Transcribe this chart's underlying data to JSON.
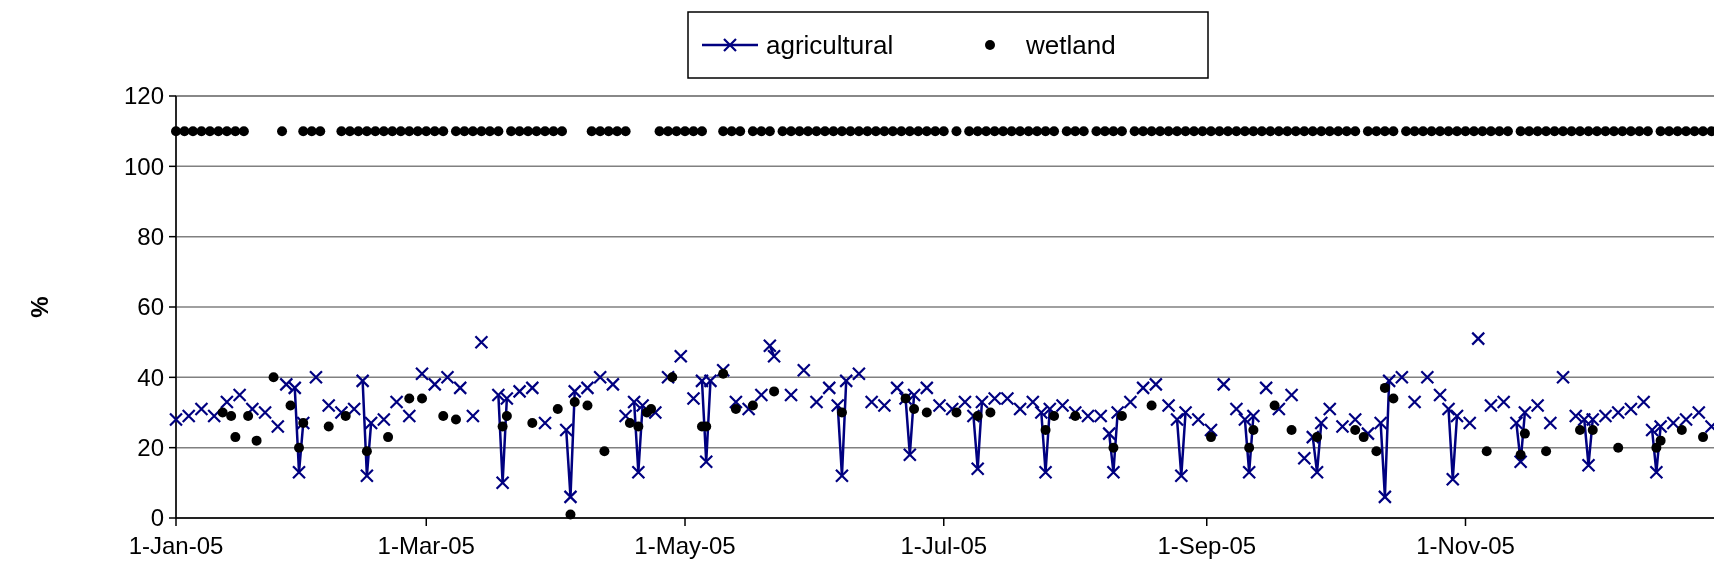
{
  "chart_data": {
    "type": "line",
    "ylabel": "%",
    "ylim": [
      0,
      120
    ],
    "yticks": [
      0,
      20,
      40,
      60,
      80,
      100,
      120
    ],
    "xlim": [
      "2005-01-01",
      "2005-12-31"
    ],
    "xticks": [
      {
        "value": "2005-01-01",
        "label": "1-Jan-05"
      },
      {
        "value": "2005-03-01",
        "label": "1-Mar-05"
      },
      {
        "value": "2005-05-01",
        "label": "1-May-05"
      },
      {
        "value": "2005-07-01",
        "label": "1-Jul-05"
      },
      {
        "value": "2005-09-01",
        "label": "1-Sep-05"
      },
      {
        "value": "2005-11-01",
        "label": "1-Nov-05"
      }
    ],
    "grid": "y",
    "legend": "top",
    "marker": "cross",
    "series": [
      {
        "name": "agricultural",
        "color": "#000080",
        "x": [
          "2005-01-29",
          "2005-01-30",
          "2005-01-31"
        ],
        "values": [
          37,
          13,
          27
        ]
      },
      {
        "color": "#000080",
        "x": [
          "2005-02-14",
          "2005-02-15",
          "2005-02-16"
        ],
        "values": [
          39,
          12,
          27
        ]
      },
      {
        "color": "#000080",
        "x": [
          "2005-03-18",
          "2005-03-19",
          "2005-03-20"
        ],
        "values": [
          35,
          10,
          34
        ]
      },
      {
        "color": "#000080",
        "x": [
          "2005-04-03",
          "2005-04-04",
          "2005-04-05"
        ],
        "values": [
          25,
          6,
          36
        ]
      },
      {
        "color": "#000080",
        "x": [
          "2005-04-19",
          "2005-04-20",
          "2005-04-21"
        ],
        "values": [
          33,
          13,
          32
        ]
      },
      {
        "color": "#000080",
        "x": [
          "2005-05-05",
          "2005-05-06",
          "2005-05-07"
        ],
        "values": [
          39,
          16,
          39
        ]
      },
      {
        "color": "#000080",
        "x": [
          "2005-05-21",
          "2005-05-22"
        ],
        "values": [
          49,
          46
        ]
      },
      {
        "color": "#000080",
        "x": [
          "2005-06-06",
          "2005-06-07",
          "2005-06-08"
        ],
        "values": [
          32,
          12,
          39
        ]
      },
      {
        "color": "#000080",
        "x": [
          "2005-06-22",
          "2005-06-23",
          "2005-06-24"
        ],
        "values": [
          34,
          18,
          35
        ]
      },
      {
        "color": "#000080",
        "x": [
          "2005-07-08",
          "2005-07-09",
          "2005-07-10"
        ],
        "values": [
          29,
          14,
          33
        ]
      },
      {
        "color": "#000080",
        "x": [
          "2005-07-24",
          "2005-07-25",
          "2005-07-26"
        ],
        "values": [
          30,
          13,
          31
        ]
      },
      {
        "color": "#000080",
        "x": [
          "2005-08-09",
          "2005-08-10",
          "2005-08-11"
        ],
        "values": [
          24,
          13,
          30
        ]
      },
      {
        "color": "#000080",
        "x": [
          "2005-08-25",
          "2005-08-26",
          "2005-08-27"
        ],
        "values": [
          28,
          12,
          30
        ]
      },
      {
        "color": "#000080",
        "x": [
          "2005-09-10",
          "2005-09-11",
          "2005-09-12"
        ],
        "values": [
          28,
          13,
          29
        ]
      },
      {
        "color": "#000080",
        "x": [
          "2005-09-26",
          "2005-09-27",
          "2005-09-28"
        ],
        "values": [
          23,
          13,
          27
        ]
      },
      {
        "color": "#000080",
        "x": [
          "2005-10-12",
          "2005-10-13",
          "2005-10-14"
        ],
        "values": [
          27,
          6,
          39
        ]
      },
      {
        "color": "#000080",
        "x": [
          "2005-10-28",
          "2005-10-29",
          "2005-10-30"
        ],
        "values": [
          31,
          11,
          29
        ]
      },
      {
        "color": "#000080",
        "x": [
          "2005-11-13",
          "2005-11-14",
          "2005-11-15"
        ],
        "values": [
          27,
          16,
          30
        ]
      },
      {
        "color": "#000080",
        "x": [
          "2005-11-29",
          "2005-11-30",
          "2005-12-01"
        ],
        "values": [
          28,
          15,
          28
        ]
      },
      {
        "color": "#000080",
        "x": [
          "2005-12-15",
          "2005-12-16",
          "2005-12-17"
        ],
        "values": [
          25,
          13,
          26
        ]
      },
      {
        "type": "scatter",
        "color": "#000080",
        "x": [
          "2005-01-01",
          "2005-01-04",
          "2005-01-07",
          "2005-01-10",
          "2005-01-13",
          "2005-01-16",
          "2005-01-19",
          "2005-01-22",
          "2005-01-25",
          "2005-01-27",
          "2005-02-03",
          "2005-02-06",
          "2005-02-09",
          "2005-02-12",
          "2005-02-19",
          "2005-02-22",
          "2005-02-25",
          "2005-02-28",
          "2005-03-03",
          "2005-03-06",
          "2005-03-09",
          "2005-03-12",
          "2005-03-14",
          "2005-03-23",
          "2005-03-26",
          "2005-03-29",
          "2005-04-08",
          "2005-04-11",
          "2005-04-14",
          "2005-04-17",
          "2005-04-24",
          "2005-04-27",
          "2005-04-30",
          "2005-05-03",
          "2005-05-10",
          "2005-05-13",
          "2005-05-16",
          "2005-05-19",
          "2005-05-26",
          "2005-05-29",
          "2005-06-01",
          "2005-06-04",
          "2005-06-11",
          "2005-06-14",
          "2005-06-17",
          "2005-06-20",
          "2005-06-27",
          "2005-06-30",
          "2005-07-03",
          "2005-07-06",
          "2005-07-13",
          "2005-07-16",
          "2005-07-19",
          "2005-07-22",
          "2005-07-29",
          "2005-08-01",
          "2005-08-04",
          "2005-08-07",
          "2005-08-14",
          "2005-08-17",
          "2005-08-20",
          "2005-08-23",
          "2005-08-30",
          "2005-09-02",
          "2005-09-05",
          "2005-09-08",
          "2005-09-15",
          "2005-09-18",
          "2005-09-21",
          "2005-09-24",
          "2005-09-30",
          "2005-10-03",
          "2005-10-06",
          "2005-10-09",
          "2005-10-17",
          "2005-10-20",
          "2005-10-23",
          "2005-10-26",
          "2005-11-02",
          "2005-11-04",
          "2005-11-07",
          "2005-11-10",
          "2005-11-18",
          "2005-11-21",
          "2005-11-24",
          "2005-11-27",
          "2005-12-04",
          "2005-12-07",
          "2005-12-10",
          "2005-12-13",
          "2005-12-20",
          "2005-12-23",
          "2005-12-26",
          "2005-12-29"
        ],
        "values": [
          28,
          29,
          31,
          29,
          33,
          35,
          31,
          30,
          26,
          38,
          40,
          32,
          30,
          31,
          28,
          33,
          29,
          41,
          38,
          40,
          37,
          29,
          50,
          36,
          37,
          27,
          37,
          40,
          38,
          29,
          30,
          40,
          46,
          34,
          42,
          33,
          31,
          35,
          35,
          42,
          33,
          37,
          41,
          33,
          32,
          37,
          37,
          32,
          31,
          33,
          34,
          34,
          31,
          33,
          32,
          30,
          29,
          29,
          33,
          37,
          38,
          32,
          28,
          25,
          38,
          31,
          37,
          31,
          35,
          17,
          31,
          26,
          28,
          24,
          40,
          33,
          40,
          35,
          27,
          51,
          32,
          33,
          32,
          27,
          40,
          29,
          29,
          30,
          31,
          33,
          27,
          28,
          30,
          26
        ]
      },
      {
        "name": "wetland",
        "type": "scatter",
        "marker": "circle",
        "color": "#000000",
        "x": [
          "2005-01-01",
          "2005-01-03",
          "2005-01-05",
          "2005-01-07",
          "2005-01-09",
          "2005-01-11",
          "2005-01-13",
          "2005-01-15",
          "2005-01-17",
          "2005-01-26",
          "2005-01-31",
          "2005-02-02",
          "2005-02-04",
          "2005-02-09",
          "2005-02-11",
          "2005-02-13",
          "2005-02-15",
          "2005-02-17",
          "2005-02-19",
          "2005-02-21",
          "2005-02-23",
          "2005-02-25",
          "2005-02-27",
          "2005-03-01",
          "2005-03-03",
          "2005-03-05",
          "2005-03-08",
          "2005-03-10",
          "2005-03-12",
          "2005-03-14",
          "2005-03-16",
          "2005-03-18",
          "2005-03-21",
          "2005-03-23",
          "2005-03-25",
          "2005-03-27",
          "2005-03-29",
          "2005-03-31",
          "2005-04-02",
          "2005-04-09",
          "2005-04-11",
          "2005-04-13",
          "2005-04-15",
          "2005-04-17",
          "2005-04-25",
          "2005-04-27",
          "2005-04-29",
          "2005-05-01",
          "2005-05-03",
          "2005-05-05",
          "2005-05-10",
          "2005-05-12",
          "2005-05-14",
          "2005-05-17",
          "2005-05-19",
          "2005-05-21",
          "2005-05-24",
          "2005-05-26",
          "2005-05-28",
          "2005-05-30",
          "2005-06-01",
          "2005-06-03",
          "2005-06-05",
          "2005-06-07",
          "2005-06-09",
          "2005-06-11",
          "2005-06-13",
          "2005-06-15",
          "2005-06-17",
          "2005-06-19",
          "2005-06-21",
          "2005-06-23",
          "2005-06-25",
          "2005-06-27",
          "2005-06-29",
          "2005-07-01",
          "2005-07-04",
          "2005-07-07",
          "2005-07-09",
          "2005-07-11",
          "2005-07-13",
          "2005-07-15",
          "2005-07-17",
          "2005-07-19",
          "2005-07-21",
          "2005-07-23",
          "2005-07-25",
          "2005-07-27",
          "2005-07-30",
          "2005-08-01",
          "2005-08-03",
          "2005-08-06",
          "2005-08-08",
          "2005-08-10",
          "2005-08-12",
          "2005-08-15",
          "2005-08-17",
          "2005-08-19",
          "2005-08-21",
          "2005-08-23",
          "2005-08-25",
          "2005-08-27",
          "2005-08-29",
          "2005-08-31",
          "2005-09-02",
          "2005-09-04",
          "2005-09-06",
          "2005-09-08",
          "2005-09-10",
          "2005-09-12",
          "2005-09-14",
          "2005-09-16",
          "2005-09-18",
          "2005-09-20",
          "2005-09-22",
          "2005-09-24",
          "2005-09-26",
          "2005-09-28",
          "2005-09-30",
          "2005-10-02",
          "2005-10-04",
          "2005-10-06",
          "2005-10-09",
          "2005-10-11",
          "2005-10-13",
          "2005-10-15",
          "2005-10-18",
          "2005-10-20",
          "2005-10-22",
          "2005-10-24",
          "2005-10-26",
          "2005-10-28",
          "2005-10-30",
          "2005-11-01",
          "2005-11-03",
          "2005-11-05",
          "2005-11-07",
          "2005-11-09",
          "2005-11-11",
          "2005-11-14",
          "2005-11-16",
          "2005-11-18",
          "2005-11-20",
          "2005-11-22",
          "2005-11-24",
          "2005-11-26",
          "2005-11-28",
          "2005-11-30",
          "2005-12-02",
          "2005-12-04",
          "2005-12-06",
          "2005-12-08",
          "2005-12-10",
          "2005-12-12",
          "2005-12-14",
          "2005-12-17",
          "2005-12-19",
          "2005-12-21",
          "2005-12-23",
          "2005-12-25",
          "2005-12-27",
          "2005-12-29",
          "2005-01-12",
          "2005-01-14",
          "2005-01-15",
          "2005-01-18",
          "2005-01-20",
          "2005-01-24",
          "2005-01-28",
          "2005-01-30",
          "2005-01-31",
          "2005-02-06",
          "2005-02-10",
          "2005-02-15",
          "2005-02-20",
          "2005-02-25",
          "2005-02-28",
          "2005-03-05",
          "2005-03-08",
          "2005-03-19",
          "2005-03-20",
          "2005-03-26",
          "2005-04-01",
          "2005-04-04",
          "2005-04-05",
          "2005-04-08",
          "2005-04-12",
          "2005-04-18",
          "2005-04-20",
          "2005-04-22",
          "2005-04-23",
          "2005-04-28",
          "2005-05-05",
          "2005-05-06",
          "2005-05-10",
          "2005-05-13",
          "2005-05-17",
          "2005-05-22",
          "2005-06-07",
          "2005-06-22",
          "2005-06-24",
          "2005-06-27",
          "2005-07-04",
          "2005-07-09",
          "2005-07-12",
          "2005-07-25",
          "2005-07-27",
          "2005-08-01",
          "2005-08-10",
          "2005-08-12",
          "2005-08-19",
          "2005-09-02",
          "2005-09-11",
          "2005-09-12",
          "2005-09-17",
          "2005-09-21",
          "2005-09-27",
          "2005-10-06",
          "2005-10-08",
          "2005-10-11",
          "2005-10-13",
          "2005-10-15",
          "2005-11-06",
          "2005-11-14",
          "2005-11-15",
          "2005-11-20",
          "2005-11-28",
          "2005-12-01",
          "2005-12-07",
          "2005-12-16",
          "2005-12-17",
          "2005-12-22",
          "2005-12-27"
        ],
        "values": [
          110,
          110,
          110,
          110,
          110,
          110,
          110,
          110,
          110,
          110,
          110,
          110,
          110,
          110,
          110,
          110,
          110,
          110,
          110,
          110,
          110,
          110,
          110,
          110,
          110,
          110,
          110,
          110,
          110,
          110,
          110,
          110,
          110,
          110,
          110,
          110,
          110,
          110,
          110,
          110,
          110,
          110,
          110,
          110,
          110,
          110,
          110,
          110,
          110,
          110,
          110,
          110,
          110,
          110,
          110,
          110,
          110,
          110,
          110,
          110,
          110,
          110,
          110,
          110,
          110,
          110,
          110,
          110,
          110,
          110,
          110,
          110,
          110,
          110,
          110,
          110,
          110,
          110,
          110,
          110,
          110,
          110,
          110,
          110,
          110,
          110,
          110,
          110,
          110,
          110,
          110,
          110,
          110,
          110,
          110,
          110,
          110,
          110,
          110,
          110,
          110,
          110,
          110,
          110,
          110,
          110,
          110,
          110,
          110,
          110,
          110,
          110,
          110,
          110,
          110,
          110,
          110,
          110,
          110,
          110,
          110,
          110,
          110,
          110,
          110,
          110,
          110,
          110,
          110,
          110,
          110,
          110,
          110,
          110,
          110,
          110,
          110,
          110,
          110,
          110,
          110,
          110,
          110,
          110,
          110,
          110,
          110,
          110,
          110,
          110,
          110,
          110,
          110,
          110,
          110,
          110,
          110,
          110,
          110,
          110,
          110,
          110,
          30,
          29,
          23,
          29,
          22,
          40,
          32,
          20,
          27,
          26,
          29,
          19,
          23,
          34,
          34,
          29,
          28,
          26,
          29,
          27,
          31,
          1,
          33,
          32,
          19,
          27,
          26,
          30,
          31,
          40,
          26,
          26,
          41,
          31,
          32,
          36,
          30,
          34,
          31,
          30,
          30,
          29,
          30,
          25,
          29,
          29,
          20,
          29,
          32,
          23,
          20,
          25,
          32,
          25,
          23,
          25,
          23,
          19,
          37,
          34,
          19,
          18,
          24,
          19,
          25,
          25,
          20,
          20,
          22,
          25,
          23
        ]
      }
    ]
  }
}
